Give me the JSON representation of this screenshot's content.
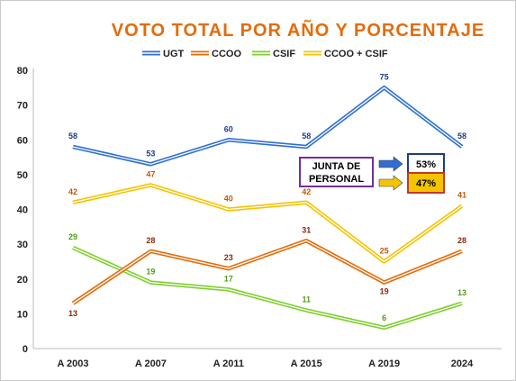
{
  "chart_data": {
    "type": "line",
    "title": "VOTO TOTAL POR AÑO Y PORCENTAJE",
    "categories": [
      "A 2003",
      "A 2007",
      "A 2011",
      "A 2015",
      "A 2019",
      "2024"
    ],
    "ylim": [
      0,
      80
    ],
    "yticks": [
      "0",
      "10",
      "20",
      "30",
      "40",
      "50",
      "60",
      "70",
      "80"
    ],
    "grid": false,
    "legend": "top",
    "series": [
      {
        "name": "UGT",
        "color": "#2e6fd1",
        "values": [
          58,
          53,
          60,
          58,
          75,
          58
        ]
      },
      {
        "name": "CCOO",
        "color": "#e36c0a",
        "values": [
          13,
          28,
          23,
          31,
          19,
          28
        ]
      },
      {
        "name": "CSIF",
        "color": "#7fcf2f",
        "values": [
          29,
          19,
          17,
          11,
          6,
          13
        ]
      },
      {
        "name": "CCOO + CSIF",
        "color": "#f5c400",
        "values": [
          42,
          47,
          40,
          42,
          25,
          41
        ]
      }
    ],
    "label_colors": [
      "#1f3c88",
      "#8b2a0a",
      "#4f9e1a",
      "#c05a0a"
    ],
    "annotation": {
      "label_line1": "JUNTA DE",
      "label_line2": "PERSONAL",
      "items": [
        {
          "text": "53%",
          "arrow_color": "#2e6fd1",
          "box_fill": "#ffffff",
          "box_border": "#1f3c88"
        },
        {
          "text": "47%",
          "arrow_color": "#f5c400",
          "box_fill": "#f5c400",
          "box_border": "#c0392b"
        }
      ]
    }
  }
}
